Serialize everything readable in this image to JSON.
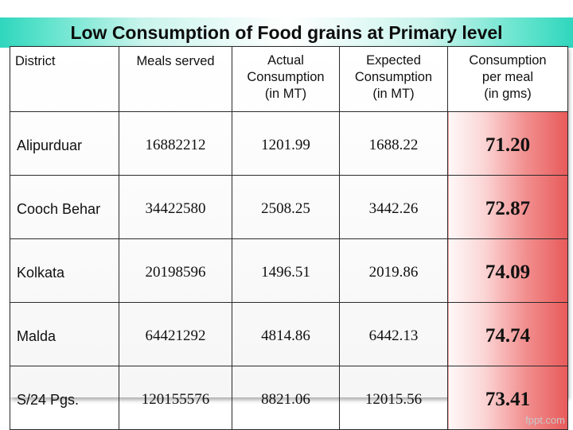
{
  "title": "Low Consumption of Food grains at Primary level",
  "headers": {
    "district": "District",
    "meals": "Meals served",
    "actual": [
      "Actual",
      "Consumption",
      "(in MT)"
    ],
    "expected": [
      "Expected",
      "Consumption",
      "(in MT)"
    ],
    "per_meal": [
      "Consumption",
      "per meal",
      "(in gms)"
    ]
  },
  "rows": [
    {
      "district": "Alipurduar",
      "meals": "16882212",
      "actual": "1201.99",
      "expected": "1688.22",
      "per_meal": "71.20"
    },
    {
      "district": "Cooch Behar",
      "meals": "34422580",
      "actual": "2508.25",
      "expected": "3442.26",
      "per_meal": "72.87"
    },
    {
      "district": "Kolkata",
      "meals": "20198596",
      "actual": "1496.51",
      "expected": "2019.86",
      "per_meal": "74.09"
    },
    {
      "district": "Malda",
      "meals": "64421292",
      "actual": "4814.86",
      "expected": "6442.13",
      "per_meal": "74.74"
    },
    {
      "district": "S/24 Pgs.",
      "meals": "120155576",
      "actual": "8821.06",
      "expected": "12015.56",
      "per_meal": "73.41"
    }
  ],
  "footer_logo": "fppt.com",
  "colors": {
    "title_accent": "#2fd6bd",
    "highlight": "#e85a5a"
  }
}
